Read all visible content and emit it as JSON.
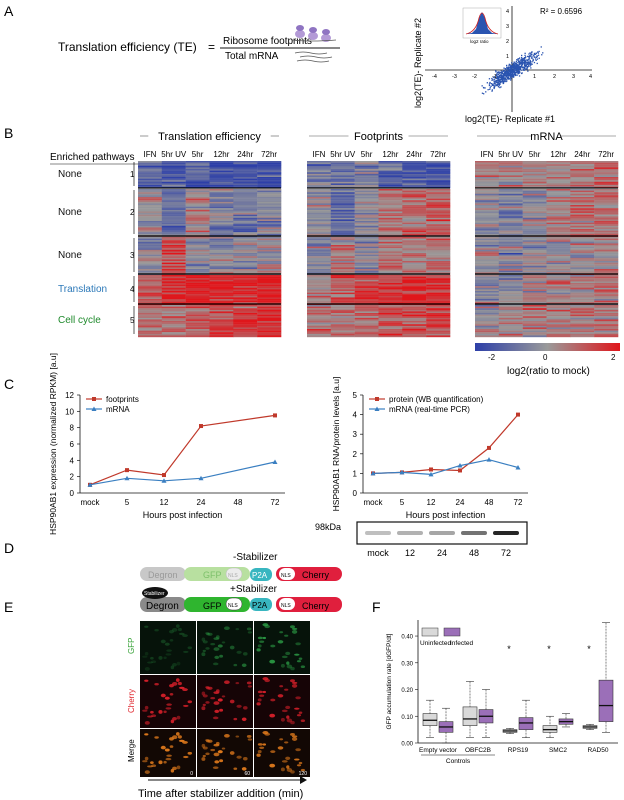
{
  "panel_letters": [
    "A",
    "B",
    "C",
    "D",
    "E",
    "F"
  ],
  "panelA": {
    "te_label": "Translation efficiency (TE)",
    "equals": "=",
    "numerator": "Ribosome footprints",
    "denominator": "Total mRNA",
    "scatter": {
      "r2": "R² = 0.6596",
      "xlabel": "log2(TE)- Replicate #1",
      "ylabel": "log2(TE)- Replicate #2",
      "ticks": [
        "-4",
        "-3",
        "-2",
        "-1",
        "1",
        "2",
        "3",
        "4"
      ],
      "inset_label": "log2 ratio"
    }
  },
  "panelB": {
    "enriched_header": "Enriched pathways",
    "groups": [
      {
        "label": "None",
        "num": "1",
        "color": "#111111"
      },
      {
        "label": "None",
        "num": "2",
        "color": "#111111"
      },
      {
        "label": "None",
        "num": "3",
        "color": "#111111"
      },
      {
        "label": "Translation",
        "num": "4",
        "color": "#2b78b8"
      },
      {
        "label": "Cell cycle",
        "num": "5",
        "color": "#1f8a2c"
      }
    ],
    "heatmaps": [
      {
        "title": "Translation efficiency",
        "cols": [
          "IFN",
          "5hr UV",
          "5hr",
          "12hr",
          "24hr",
          "72hr"
        ]
      },
      {
        "title": "Footprints",
        "cols": [
          "IFN",
          "5hr UV",
          "5hr",
          "12hr",
          "24hr",
          "72hr"
        ]
      },
      {
        "title": "mRNA",
        "cols": [
          "IFN",
          "5hr UV",
          "5hr",
          "12hr",
          "24hr",
          "72hr"
        ]
      }
    ],
    "colorbar": {
      "ticks": [
        "-2",
        "0",
        "2"
      ],
      "label": "log2(ratio to mock)",
      "low": "#2d3fa8",
      "mid": "#9a9a9a",
      "high": "#e0161b"
    }
  },
  "chart_data": [
    {
      "type": "line",
      "ylabel": "HSP90AB1 expression (normalized RPKM) [a.u]",
      "xlabel": "Hours post infection",
      "categories": [
        "mock",
        "5",
        "12",
        "24",
        "48",
        "72"
      ],
      "ylim": [
        0,
        12
      ],
      "yticks": [
        "0",
        "2",
        "4",
        "6",
        "8",
        "10",
        "12"
      ],
      "series": [
        {
          "name": "footprints",
          "color": "#c0392b",
          "values": [
            1.0,
            2.8,
            2.2,
            8.2,
            null,
            9.5
          ]
        },
        {
          "name": "mRNA",
          "color": "#3a7fc1",
          "values": [
            1.0,
            1.8,
            1.5,
            1.8,
            null,
            3.8
          ]
        }
      ]
    },
    {
      "type": "line",
      "ylabel": "HSP90AB1 RNA/protein levels [a.u]",
      "xlabel": "Hours post infection",
      "categories": [
        "mock",
        "5",
        "12",
        "24",
        "48",
        "72"
      ],
      "ylim": [
        0,
        5
      ],
      "yticks": [
        "0",
        "1",
        "2",
        "3",
        "4",
        "5"
      ],
      "series": [
        {
          "name": "protein (WB quantification)",
          "color": "#c0392b",
          "values": [
            1.0,
            1.05,
            1.2,
            1.15,
            2.3,
            4.0
          ]
        },
        {
          "name": "mRNA (real-time PCR)",
          "color": "#3a7fc1",
          "values": [
            1.0,
            1.05,
            0.95,
            1.4,
            1.7,
            1.3
          ]
        }
      ]
    },
    {
      "type": "box",
      "ylabel": "GFP accumulation rate [dGFP/dt]",
      "yticks": [
        "0.00",
        "0.10",
        "0.20",
        "0.30",
        "0.40"
      ],
      "ylim": [
        0,
        0.46
      ],
      "categories": [
        "Empty vector",
        "OBFC2B",
        "RPS19",
        "SMC2",
        "RAD50"
      ],
      "group_label": "Controls",
      "legend": [
        "Uninfected",
        "Infected"
      ],
      "colors": {
        "uninfected": "#d9d9d9",
        "infected": "#9b6fb8"
      },
      "significance": [
        false,
        false,
        true,
        true,
        true
      ],
      "boxes": [
        {
          "cat": "Empty vector",
          "group": "Uninfected",
          "min": 0.02,
          "q1": 0.065,
          "median": 0.085,
          "q3": 0.11,
          "max": 0.16
        },
        {
          "cat": "Empty vector",
          "group": "Infected",
          "min": 0.0,
          "q1": 0.04,
          "median": 0.06,
          "q3": 0.08,
          "max": 0.13
        },
        {
          "cat": "OBFC2B",
          "group": "Uninfected",
          "min": 0.02,
          "q1": 0.065,
          "median": 0.09,
          "q3": 0.135,
          "max": 0.23
        },
        {
          "cat": "OBFC2B",
          "group": "Infected",
          "min": 0.02,
          "q1": 0.075,
          "median": 0.1,
          "q3": 0.125,
          "max": 0.2
        },
        {
          "cat": "RPS19",
          "group": "Uninfected",
          "min": 0.035,
          "q1": 0.04,
          "median": 0.045,
          "q3": 0.05,
          "max": 0.055
        },
        {
          "cat": "RPS19",
          "group": "Infected",
          "min": 0.02,
          "q1": 0.05,
          "median": 0.075,
          "q3": 0.095,
          "max": 0.16
        },
        {
          "cat": "SMC2",
          "group": "Uninfected",
          "min": 0.02,
          "q1": 0.04,
          "median": 0.05,
          "q3": 0.065,
          "max": 0.1
        },
        {
          "cat": "SMC2",
          "group": "Infected",
          "min": 0.06,
          "q1": 0.07,
          "median": 0.08,
          "q3": 0.09,
          "max": 0.11
        },
        {
          "cat": "RAD50",
          "group": "Uninfected",
          "min": 0.05,
          "q1": 0.055,
          "median": 0.06,
          "q3": 0.065,
          "max": 0.07
        },
        {
          "cat": "RAD50",
          "group": "Infected",
          "min": 0.04,
          "q1": 0.08,
          "median": 0.14,
          "q3": 0.235,
          "max": 0.45
        }
      ]
    }
  ],
  "panelC": {
    "blot_marker": "98kDa",
    "blot_lanes": [
      "mock",
      "12",
      "24",
      "48",
      "72"
    ]
  },
  "panelD": {
    "minus_label": "-Stabilizer",
    "plus_label": "+Stabilizer",
    "stabilizer": "Stabilizer",
    "parts": [
      "Degron",
      "GFP",
      "NLS",
      "P2A",
      "NLS",
      "Cherry"
    ],
    "colors": {
      "degron_off": "#c8c8c8",
      "degron_on": "#8a8a8a",
      "gfp_off": "#b8e0a0",
      "gfp_on": "#2fb52f",
      "p2a": "#38b6c0",
      "cherry": "#e01f3d"
    }
  },
  "panelE": {
    "rows": [
      "GFP",
      "Cherry",
      "Merge"
    ],
    "times": [
      "0",
      "60",
      "120"
    ],
    "xlabel": "Time after stabilizer addition (min)"
  }
}
